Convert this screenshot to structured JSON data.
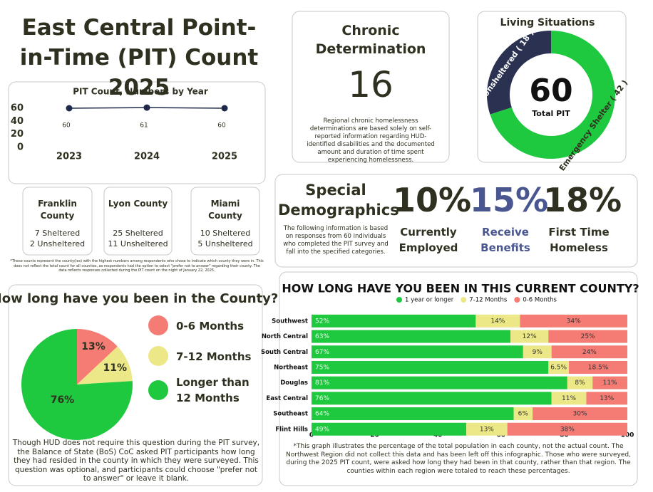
{
  "title": "East Central Point-in-Time (PIT) Count 2025",
  "chronic": {
    "title": "Chronic Determination",
    "value": 16,
    "text": "Regional chronic homelessness determinations are based solely on self-reported information regarding HUD-identified disabilities and the documented amount and duration of time spent experiencing homelessness."
  },
  "counties": [
    {
      "name": "Franklin County",
      "sheltered": "7 Sheltered",
      "unsheltered": "2 Unsheltered"
    },
    {
      "name": "Lyon County",
      "sheltered": "25 Sheltered",
      "unsheltered": "11 Unsheltered"
    },
    {
      "name": "Miami County",
      "sheltered": "10 Sheltered",
      "unsheltered": "5 Unsheltered"
    }
  ],
  "county_note": "*These counts represent the county(ies) with the highest numbers among respondents who chose to indicate which county they were in. This does not reflect the total count for all counties, as respondents had the option to select \"prefer not to answer\" regarding their county. The data reflects responses collected during the PIT count on the night of January 22, 2025.",
  "special": {
    "title": "Special Demographics",
    "text": "The following information is based on responses from 60 individuals who completed the PIT survey and fall into the specified categories.",
    "stats": [
      {
        "value": "10%",
        "label": "Currently Employed",
        "color": "#2f3020"
      },
      {
        "value": "15%",
        "label": "Receive Benefits",
        "color": "#4a5690"
      },
      {
        "value": "18%",
        "label": "First Time Homeless",
        "color": "#2f3020"
      }
    ]
  },
  "pie_note": "Though HUD does not require this question during the PIT survey, the Balance of State (BoS) CoC asked PIT participants how long they had resided in the county in which they were surveyed. This question was optional, and participants could choose \"prefer not to answer\" or leave it blank.",
  "bar_note": "*This graph illustrates the percentage of the total population in each county, not the actual count. The Northwest Region did not collect this data and has been left off this infographic. Those who were surveyed, during the 2025 PIT count, were asked how long they had been in that county, rather than that region. The counties within each region were totaled to reach these percentages.",
  "chart_data": [
    {
      "type": "line",
      "title": "PIT Count, Numbers by Year",
      "categories": [
        "2023",
        "2024",
        "2025"
      ],
      "values": [
        60,
        61,
        60
      ],
      "color": "#1f2a4a",
      "ylim": [
        0,
        60
      ],
      "yticks": [
        0,
        20,
        40,
        60
      ]
    },
    {
      "type": "donut",
      "title": "Living Situations",
      "categories": [
        "Unsheltered ( 18 )",
        "Emergency Shelter ( 42 )"
      ],
      "values": [
        18,
        42
      ],
      "colors": [
        "#2b3150",
        "#1ec93f"
      ],
      "total": 60,
      "total_label": "Total PIT"
    },
    {
      "type": "pie",
      "title": "How long have you been in the County?",
      "categories": [
        "0-6 Months",
        "7-12 Months",
        "Longer than 12 Months"
      ],
      "values": [
        13,
        11,
        76
      ],
      "value_labels": [
        "13%",
        "11%",
        "76%"
      ],
      "colors": [
        "#f47c74",
        "#ece888",
        "#1ec93f"
      ]
    },
    {
      "type": "stacked-bar",
      "title": "HOW LONG HAVE YOU BEEN IN THIS CURRENT COUNTY?",
      "categories": [
        "Southwest",
        "North Central",
        "South Central",
        "Northeast",
        "Douglas",
        "East Central",
        "Southeast",
        "Flint Hills"
      ],
      "series": [
        {
          "name": "1 year or longer",
          "color": "#1ec93f",
          "values": [
            52,
            63,
            67,
            75,
            81,
            76,
            64,
            49
          ],
          "value_labels": [
            "52%",
            "63%",
            "67%",
            "75%",
            "81%",
            "76%",
            "64%",
            "49%"
          ]
        },
        {
          "name": "7-12 Months",
          "color": "#ece888",
          "values": [
            14,
            12,
            9,
            6.5,
            8,
            11,
            6,
            13
          ],
          "value_labels": [
            "14%",
            "12%",
            "9%",
            "6.5%",
            "8%",
            "11%",
            "6%",
            "13%"
          ]
        },
        {
          "name": "0-6 Months",
          "color": "#f47c74",
          "values": [
            34,
            25,
            24,
            18.5,
            11,
            13,
            30,
            38
          ],
          "value_labels": [
            "34%",
            "25%",
            "24%",
            "18.5%",
            "11%",
            "13%",
            "30%",
            "38%"
          ]
        }
      ],
      "xlim": [
        0,
        100
      ],
      "xticks": [
        0,
        20,
        40,
        60,
        80,
        100
      ]
    }
  ]
}
